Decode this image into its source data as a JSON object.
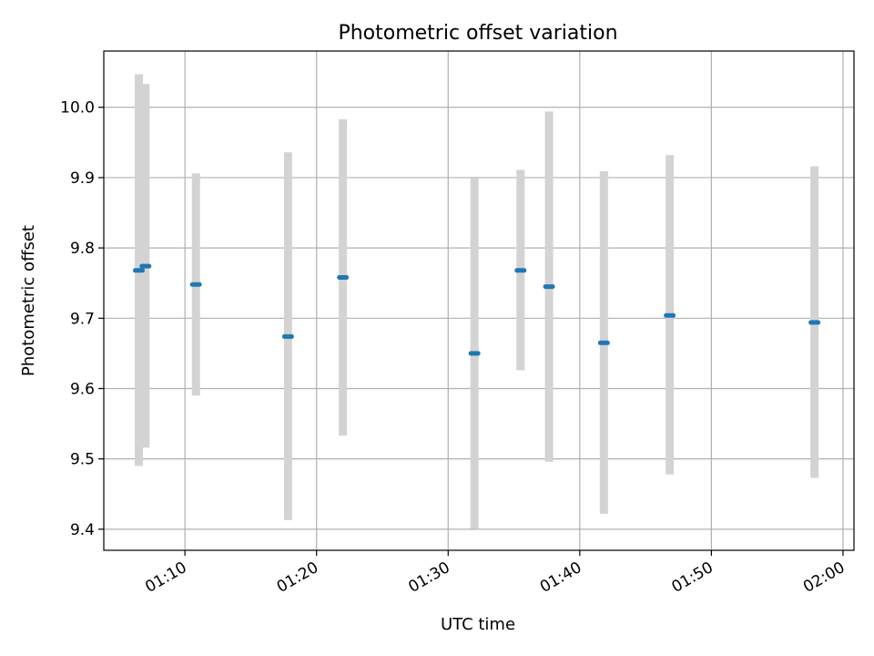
{
  "chart_data": {
    "type": "scatter",
    "title": "Photometric offset variation",
    "xlabel": "UTC time",
    "ylabel": "Photometric offset",
    "x_axis_kind": "time",
    "xlim": [
      "01:03:50",
      "02:00:50"
    ],
    "ylim": [
      9.37,
      10.08
    ],
    "x_ticks": [
      "01:10",
      "01:20",
      "01:30",
      "01:40",
      "01:50",
      "02:00"
    ],
    "y_ticks": [
      "9.4",
      "9.5",
      "9.6",
      "9.7",
      "9.8",
      "9.9",
      "10.0"
    ],
    "grid": true,
    "colors": {
      "point": "#1f77b4",
      "errorbar": "#d3d3d3",
      "grid": "#b0b0b0"
    },
    "series": [
      {
        "points": [
          {
            "x": "01:06:30",
            "y": 9.768,
            "yerr_low": 9.49,
            "yerr_high": 10.047
          },
          {
            "x": "01:07:00",
            "y": 9.774,
            "yerr_low": 9.516,
            "yerr_high": 10.033
          },
          {
            "x": "01:10:50",
            "y": 9.748,
            "yerr_low": 9.59,
            "yerr_high": 9.906
          },
          {
            "x": "01:17:50",
            "y": 9.674,
            "yerr_low": 9.413,
            "yerr_high": 9.936
          },
          {
            "x": "01:22:00",
            "y": 9.758,
            "yerr_low": 9.533,
            "yerr_high": 9.983
          },
          {
            "x": "01:32:00",
            "y": 9.65,
            "yerr_low": 9.401,
            "yerr_high": 9.899
          },
          {
            "x": "01:35:30",
            "y": 9.768,
            "yerr_low": 9.626,
            "yerr_high": 9.911
          },
          {
            "x": "01:37:40",
            "y": 9.745,
            "yerr_low": 9.496,
            "yerr_high": 9.994
          },
          {
            "x": "01:41:50",
            "y": 9.665,
            "yerr_low": 9.422,
            "yerr_high": 9.909
          },
          {
            "x": "01:46:50",
            "y": 9.704,
            "yerr_low": 9.478,
            "yerr_high": 9.932
          },
          {
            "x": "01:57:50",
            "y": 9.694,
            "yerr_low": 9.473,
            "yerr_high": 9.916
          }
        ]
      }
    ]
  }
}
